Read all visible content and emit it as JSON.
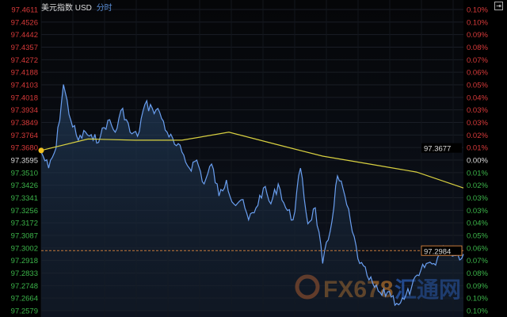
{
  "header": {
    "title": "美元指数",
    "symbol": "USD",
    "mode": "分时"
  },
  "watermark": {
    "brand": "FX678",
    "cn": "汇通网"
  },
  "chart_data": {
    "type": "line",
    "title": "美元指数 USD 分时",
    "y_ticks_left": [
      "97.4611",
      "97.4526",
      "97.4442",
      "97.4357",
      "97.4272",
      "97.4188",
      "97.4103",
      "97.4018",
      "97.3934",
      "97.3849",
      "97.3764",
      "97.3680",
      "97.3595",
      "97.3510",
      "97.3426",
      "97.3341",
      "97.3256",
      "97.3172",
      "97.3087",
      "97.3002",
      "97.2918",
      "97.2833",
      "97.2748",
      "97.2664",
      "97.2579"
    ],
    "y_ticks_right": [
      "0.10%",
      "0.10%",
      "0.09%",
      "0.08%",
      "0.07%",
      "0.06%",
      "0.05%",
      "0.04%",
      "0.03%",
      "0.03%",
      "0.02%",
      "0.01%",
      "0.00%",
      "0.01%",
      "0.02%",
      "0.03%",
      "0.03%",
      "0.04%",
      "0.05%",
      "0.06%",
      "0.07%",
      "0.08%",
      "0.09%",
      "0.10%",
      "0.10%"
    ],
    "ylim": [
      97.2579,
      97.4611
    ],
    "reference_price": 97.3595,
    "grid": true,
    "price_series": [
      97.3649,
      97.3541,
      97.3676,
      97.4105,
      97.3864,
      97.3729,
      97.3783,
      97.3729,
      97.3756,
      97.3864,
      97.3783,
      97.3944,
      97.3783,
      97.3756,
      97.3971,
      97.3944,
      97.3917,
      97.3783,
      97.3702,
      97.3649,
      97.3541,
      97.3595,
      97.3434,
      97.3568,
      97.3353,
      97.3461,
      97.33,
      97.3327,
      97.3192,
      97.3273,
      97.3407,
      97.33,
      97.3434,
      97.3273,
      97.3192,
      97.3541,
      97.3165,
      97.3273,
      97.2897,
      97.3112,
      97.3488,
      97.3353,
      97.3112,
      97.2897,
      97.2816,
      97.2736,
      97.2682,
      97.2709,
      97.2628,
      97.2655,
      97.2736,
      97.2816,
      97.2897,
      97.2897,
      97.2977,
      97.3004,
      97.2951,
      97.2961
    ],
    "average_series": [
      97.366,
      97.3737,
      97.3729,
      97.3729,
      97.3783,
      97.3702,
      97.3622,
      97.3568,
      97.3514,
      97.3407
    ],
    "last_price": "97.2984",
    "average_price": "97.3677",
    "colors": {
      "price": "#6a9ff0",
      "average": "#d8d040",
      "up": "#d83a3a",
      "down": "#3cb54a",
      "last_line": "#c87a3a",
      "marker": "#f0c020"
    }
  }
}
